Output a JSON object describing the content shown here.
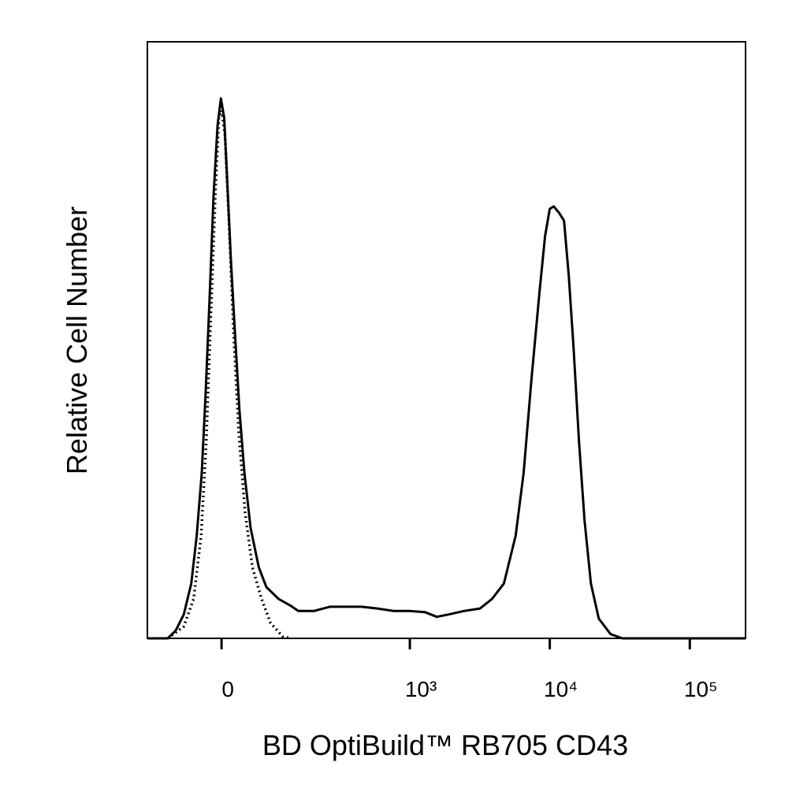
{
  "chart_data": {
    "type": "line",
    "xlabel": "BD OptiBuild™ RB705 CD43",
    "ylabel": "Relative Cell Number",
    "xscale": "biexponential",
    "xlim": [
      -140,
      250000
    ],
    "ylim": [
      0,
      100
    ],
    "xticks": [
      0,
      {
        "value": 1000,
        "label": "10³"
      },
      {
        "value": 10000,
        "label": "10⁴"
      },
      {
        "value": 100000,
        "label": "10⁵"
      }
    ],
    "series": [
      {
        "color": "#000000",
        "linestyle": "solid",
        "x": [
          -139,
          -91,
          -75,
          -60,
          -47,
          -38,
          -30,
          -24,
          -18,
          -12,
          -6,
          -1,
          4,
          8,
          14,
          20,
          27,
          35,
          45,
          59,
          73,
          98,
          126,
          147,
          198,
          261,
          343,
          448,
          583,
          759,
          986,
          1280,
          1558,
          1894,
          2455,
          3180,
          3869,
          4702,
          5708,
          6505,
          7411,
          8444,
          9250,
          10002,
          10673,
          11687,
          12639,
          13662,
          14768,
          16172,
          17712,
          19660,
          22378,
          27207,
          33069,
          250000
        ],
        "values": [
          0,
          0,
          1.3,
          4.0,
          9.2,
          17.2,
          27.7,
          41.0,
          56.8,
          74.0,
          85.9,
          90.5,
          87.2,
          77.9,
          63.4,
          51.5,
          38.3,
          27.7,
          18.5,
          11.9,
          8.6,
          6.6,
          5.5,
          4.6,
          4.6,
          5.3,
          5.3,
          5.3,
          5.0,
          4.6,
          4.6,
          4.4,
          3.6,
          4.0,
          4.6,
          5.0,
          6.6,
          9.2,
          17.2,
          27.7,
          43.6,
          58.1,
          67.4,
          72.0,
          72.4,
          71.3,
          70.0,
          60.8,
          48.9,
          33.0,
          19.8,
          9.2,
          3.3,
          0.7,
          0,
          0
        ]
      },
      {
        "color": "#000000",
        "linestyle": "dotted",
        "x": [
          -91,
          -60,
          -43,
          -31,
          -23,
          -16,
          -9,
          -4,
          0,
          5,
          11,
          18,
          26,
          36,
          48,
          64,
          81,
          107,
          126
        ],
        "values": [
          0,
          2.0,
          6.6,
          17.2,
          33.0,
          54.2,
          75.3,
          87.2,
          88.5,
          84.5,
          70.0,
          51.5,
          34.3,
          21.1,
          11.9,
          6.6,
          2.6,
          0.3,
          0
        ]
      }
    ]
  }
}
